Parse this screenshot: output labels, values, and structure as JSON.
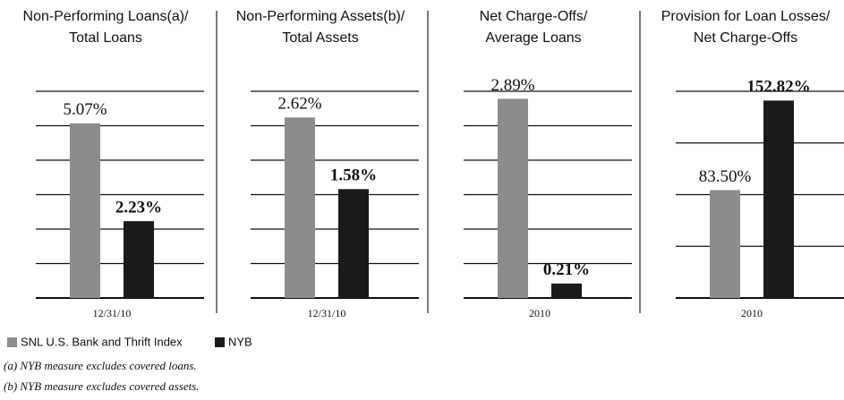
{
  "legend": [
    {
      "name": "SNL U.S. Bank and Thrift Index",
      "color": "#8c8c8c"
    },
    {
      "name": "NYB",
      "color": "#1a1a1a"
    }
  ],
  "footnotes": [
    "(a) NYB measure excludes covered loans.",
    "(b) NYB measure excludes covered assets."
  ],
  "chart_data": [
    {
      "type": "bar",
      "title": [
        "Non-Performing Loans(a)/",
        "Total Loans"
      ],
      "categories": [
        "12/31/10"
      ],
      "series": [
        {
          "values": [
            5.07
          ],
          "value_labels": [
            "5.07%"
          ]
        },
        {
          "values": [
            2.23
          ],
          "value_labels": [
            "2.23%"
          ]
        }
      ],
      "ylim": [
        0,
        6
      ],
      "yticks": [
        0,
        1,
        2,
        3,
        4,
        5,
        6
      ],
      "grid": true
    },
    {
      "type": "bar",
      "title": [
        "Non-Performing Assets(b)/",
        "Total Assets"
      ],
      "categories": [
        "12/31/10"
      ],
      "series": [
        {
          "values": [
            2.62
          ],
          "value_labels": [
            "2.62%"
          ]
        },
        {
          "values": [
            1.58
          ],
          "value_labels": [
            "1.58%"
          ]
        }
      ],
      "ylim": [
        0,
        3
      ],
      "yticks": [
        0,
        0.5,
        1,
        1.5,
        2,
        2.5,
        3
      ],
      "grid": true
    },
    {
      "type": "bar",
      "title": [
        "Net Charge-Offs/",
        "Average Loans"
      ],
      "categories": [
        "2010"
      ],
      "series": [
        {
          "values": [
            2.89
          ],
          "value_labels": [
            "2.89%"
          ]
        },
        {
          "values": [
            0.21
          ],
          "value_labels": [
            "0.21%"
          ]
        }
      ],
      "ylim": [
        0,
        3
      ],
      "yticks": [
        0,
        0.5,
        1,
        1.5,
        2,
        2.5,
        3
      ],
      "grid": true
    },
    {
      "type": "bar",
      "title": [
        "Provision for Loan Losses/",
        "Net Charge-Offs"
      ],
      "categories": [
        "2010"
      ],
      "series": [
        {
          "values": [
            83.5
          ],
          "value_labels": [
            "83.50%"
          ]
        },
        {
          "values": [
            152.82
          ],
          "value_labels": [
            "152.82%"
          ]
        }
      ],
      "ylim": [
        0,
        160
      ],
      "yticks": [
        0,
        40,
        80,
        120,
        160
      ],
      "grid": true
    }
  ]
}
